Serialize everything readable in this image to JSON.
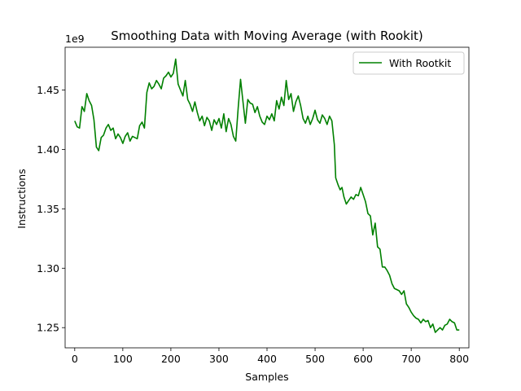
{
  "chart_data": {
    "type": "line",
    "title": "Smoothing Data with Moving Average (with Rookit)",
    "xlabel": "Samples",
    "ylabel": "Instructions",
    "y_offset_label": "1e9",
    "xlim": [
      -20,
      820
    ],
    "ylim": [
      1.233,
      1.486
    ],
    "xticks": [
      0,
      100,
      200,
      300,
      400,
      500,
      600,
      700,
      800
    ],
    "xtick_labels": [
      "0",
      "100",
      "200",
      "300",
      "400",
      "500",
      "600",
      "700",
      "800"
    ],
    "yticks": [
      1.25,
      1.3,
      1.35,
      1.4,
      1.45
    ],
    "ytick_labels": [
      "1.25",
      "1.30",
      "1.35",
      "1.40",
      "1.45"
    ],
    "grid": false,
    "legend_position": "upper right",
    "series": [
      {
        "name": "With Rootkit",
        "color": "#008000",
        "points": [
          [
            0,
            1.424
          ],
          [
            5,
            1.419
          ],
          [
            10,
            1.418
          ],
          [
            15,
            1.436
          ],
          [
            20,
            1.432
          ],
          [
            25,
            1.447
          ],
          [
            30,
            1.441
          ],
          [
            35,
            1.437
          ],
          [
            40,
            1.425
          ],
          [
            45,
            1.402
          ],
          [
            50,
            1.399
          ],
          [
            55,
            1.41
          ],
          [
            60,
            1.412
          ],
          [
            65,
            1.418
          ],
          [
            70,
            1.421
          ],
          [
            75,
            1.416
          ],
          [
            80,
            1.418
          ],
          [
            85,
            1.409
          ],
          [
            90,
            1.413
          ],
          [
            95,
            1.41
          ],
          [
            100,
            1.405
          ],
          [
            105,
            1.411
          ],
          [
            110,
            1.414
          ],
          [
            115,
            1.407
          ],
          [
            120,
            1.411
          ],
          [
            125,
            1.41
          ],
          [
            130,
            1.409
          ],
          [
            135,
            1.42
          ],
          [
            140,
            1.423
          ],
          [
            145,
            1.418
          ],
          [
            150,
            1.448
          ],
          [
            155,
            1.456
          ],
          [
            160,
            1.451
          ],
          [
            165,
            1.453
          ],
          [
            170,
            1.458
          ],
          [
            175,
            1.455
          ],
          [
            180,
            1.451
          ],
          [
            185,
            1.46
          ],
          [
            190,
            1.462
          ],
          [
            195,
            1.465
          ],
          [
            200,
            1.461
          ],
          [
            205,
            1.464
          ],
          [
            210,
            1.476
          ],
          [
            215,
            1.455
          ],
          [
            220,
            1.45
          ],
          [
            225,
            1.445
          ],
          [
            230,
            1.458
          ],
          [
            235,
            1.442
          ],
          [
            240,
            1.438
          ],
          [
            245,
            1.432
          ],
          [
            250,
            1.44
          ],
          [
            255,
            1.431
          ],
          [
            260,
            1.424
          ],
          [
            265,
            1.428
          ],
          [
            270,
            1.42
          ],
          [
            275,
            1.427
          ],
          [
            280,
            1.424
          ],
          [
            285,
            1.416
          ],
          [
            290,
            1.425
          ],
          [
            295,
            1.421
          ],
          [
            300,
            1.426
          ],
          [
            305,
            1.418
          ],
          [
            310,
            1.43
          ],
          [
            315,
            1.415
          ],
          [
            320,
            1.426
          ],
          [
            325,
            1.421
          ],
          [
            330,
            1.411
          ],
          [
            335,
            1.407
          ],
          [
            340,
            1.435
          ],
          [
            345,
            1.459
          ],
          [
            350,
            1.44
          ],
          [
            355,
            1.422
          ],
          [
            360,
            1.442
          ],
          [
            365,
            1.439
          ],
          [
            370,
            1.438
          ],
          [
            375,
            1.431
          ],
          [
            380,
            1.436
          ],
          [
            385,
            1.428
          ],
          [
            390,
            1.423
          ],
          [
            395,
            1.421
          ],
          [
            400,
            1.428
          ],
          [
            405,
            1.425
          ],
          [
            410,
            1.43
          ],
          [
            415,
            1.424
          ],
          [
            420,
            1.441
          ],
          [
            425,
            1.434
          ],
          [
            430,
            1.444
          ],
          [
            435,
            1.437
          ],
          [
            440,
            1.458
          ],
          [
            445,
            1.442
          ],
          [
            450,
            1.447
          ],
          [
            455,
            1.432
          ],
          [
            460,
            1.44
          ],
          [
            465,
            1.445
          ],
          [
            470,
            1.437
          ],
          [
            475,
            1.426
          ],
          [
            480,
            1.422
          ],
          [
            485,
            1.428
          ],
          [
            490,
            1.421
          ],
          [
            495,
            1.426
          ],
          [
            500,
            1.433
          ],
          [
            505,
            1.425
          ],
          [
            510,
            1.422
          ],
          [
            515,
            1.429
          ],
          [
            520,
            1.426
          ],
          [
            525,
            1.421
          ],
          [
            530,
            1.428
          ],
          [
            535,
            1.424
          ],
          [
            540,
            1.404
          ],
          [
            543,
            1.376
          ],
          [
            548,
            1.37
          ],
          [
            552,
            1.366
          ],
          [
            556,
            1.368
          ],
          [
            560,
            1.36
          ],
          [
            565,
            1.354
          ],
          [
            570,
            1.357
          ],
          [
            575,
            1.36
          ],
          [
            580,
            1.358
          ],
          [
            585,
            1.362
          ],
          [
            590,
            1.361
          ],
          [
            595,
            1.368
          ],
          [
            600,
            1.362
          ],
          [
            605,
            1.356
          ],
          [
            610,
            1.346
          ],
          [
            615,
            1.344
          ],
          [
            620,
            1.328
          ],
          [
            625,
            1.338
          ],
          [
            630,
            1.318
          ],
          [
            635,
            1.316
          ],
          [
            640,
            1.301
          ],
          [
            645,
            1.301
          ],
          [
            650,
            1.298
          ],
          [
            655,
            1.294
          ],
          [
            660,
            1.287
          ],
          [
            665,
            1.283
          ],
          [
            670,
            1.282
          ],
          [
            675,
            1.281
          ],
          [
            680,
            1.278
          ],
          [
            685,
            1.281
          ],
          [
            690,
            1.27
          ],
          [
            695,
            1.267
          ],
          [
            700,
            1.263
          ],
          [
            705,
            1.26
          ],
          [
            710,
            1.258
          ],
          [
            715,
            1.257
          ],
          [
            720,
            1.254
          ],
          [
            725,
            1.257
          ],
          [
            730,
            1.255
          ],
          [
            735,
            1.256
          ],
          [
            740,
            1.25
          ],
          [
            745,
            1.253
          ],
          [
            750,
            1.246
          ],
          [
            755,
            1.248
          ],
          [
            760,
            1.25
          ],
          [
            765,
            1.248
          ],
          [
            770,
            1.252
          ],
          [
            775,
            1.253
          ],
          [
            780,
            1.257
          ],
          [
            785,
            1.255
          ],
          [
            790,
            1.254
          ],
          [
            795,
            1.248
          ],
          [
            800,
            1.248
          ]
        ]
      }
    ]
  }
}
